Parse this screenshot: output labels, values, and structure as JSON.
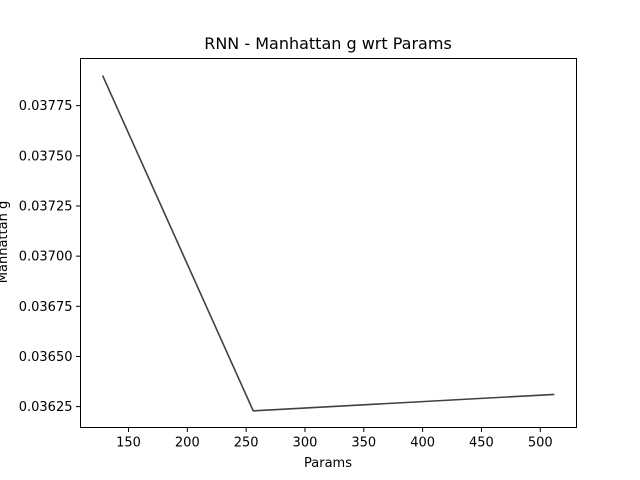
{
  "chart_data": {
    "type": "line",
    "title": "RNN - Manhattan g wrt Params",
    "xlabel": "Params",
    "ylabel": "Manhattan g",
    "xlim": [
      109.2,
      530.8
    ],
    "ylim": [
      0.036146,
      0.037985
    ],
    "xticks": [
      150,
      200,
      250,
      300,
      350,
      400,
      450,
      500
    ],
    "xtick_labels": [
      "150",
      "200",
      "250",
      "300",
      "350",
      "400",
      "450",
      "500"
    ],
    "yticks": [
      0.03625,
      0.0365,
      0.03675,
      0.037,
      0.03725,
      0.0375,
      0.03775
    ],
    "ytick_labels": [
      "0.03625",
      "0.03650",
      "0.03675",
      "0.03700",
      "0.03725",
      "0.03750",
      "0.03775"
    ],
    "grid": false,
    "series": [
      {
        "color": "#404040",
        "x": [
          128,
          256,
          512
        ],
        "y": [
          0.0379,
          0.036229,
          0.036311
        ]
      }
    ]
  }
}
